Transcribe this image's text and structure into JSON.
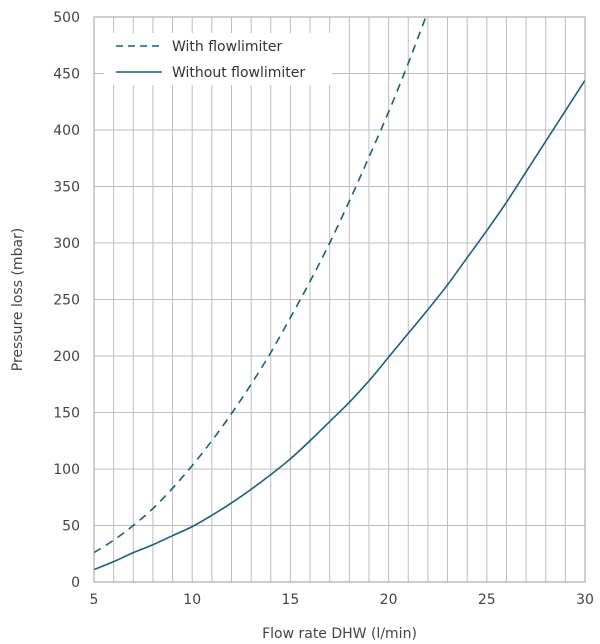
{
  "chart_data": {
    "type": "line",
    "title": "",
    "xlabel": "Flow rate DHW (l/min)",
    "ylabel": "Pressure loss (mbar)",
    "xlim": [
      5,
      30
    ],
    "ylim": [
      0,
      500
    ],
    "x_major_ticks": [
      "5",
      "10",
      "15",
      "20",
      "25",
      "30"
    ],
    "y_major_ticks": [
      "0",
      "50",
      "100",
      "150",
      "200",
      "250",
      "300",
      "350",
      "400",
      "450",
      "500"
    ],
    "x_minor_step": 1,
    "y_grid_step": 50,
    "grid": true,
    "legend_position": "top-left",
    "series": [
      {
        "name": "With flowlimiter",
        "line_style": "dashed",
        "color": "#1b5f7a",
        "x": [
          5,
          6,
          7,
          8,
          9,
          10,
          11,
          12,
          13,
          14,
          15,
          16,
          17,
          18,
          19,
          20,
          21,
          22
        ],
        "y": [
          26,
          37,
          50,
          65,
          83,
          103,
          125,
          149,
          175,
          203,
          234,
          266,
          300,
          337,
          376,
          416,
          459,
          505
        ]
      },
      {
        "name": "Without flowlimiter",
        "line_style": "solid",
        "color": "#1b5f7a",
        "x": [
          5,
          6,
          7,
          8,
          9,
          10,
          11,
          12,
          13,
          14,
          15,
          16,
          17,
          18,
          19,
          20,
          21,
          22,
          23,
          24,
          25,
          26,
          27,
          28,
          29,
          30
        ],
        "y": [
          11,
          18,
          26,
          33,
          41,
          49,
          59,
          70,
          82,
          95,
          109,
          125,
          142,
          159,
          178,
          199,
          220,
          241,
          263,
          287,
          311,
          336,
          363,
          390,
          417,
          444
        ]
      }
    ]
  },
  "style": {
    "line_color": "#1b5f7a",
    "grid_color": "#bdbdbd",
    "frame_color": "#9e9e9e",
    "text_color": "#444444"
  }
}
